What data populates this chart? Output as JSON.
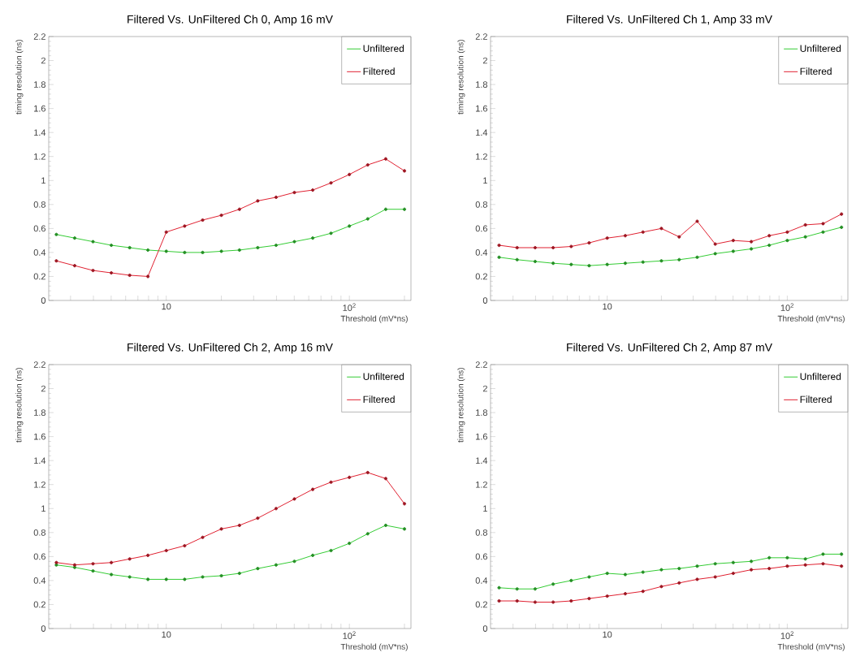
{
  "chart_data": [
    {
      "type": "line",
      "title": "Filtered Vs. UnFiltered Ch 0, Amp 16 mV",
      "xlabel": "Threshold (mV*ns)",
      "ylabel": "timing resolution (ns)",
      "log": "x",
      "legend": "top right",
      "marker": "circle",
      "line_style": "solid",
      "x": [
        2.51,
        3.16,
        3.98,
        5.01,
        6.31,
        7.94,
        10,
        12.6,
        15.8,
        20,
        25.1,
        31.6,
        39.8,
        50.1,
        63.1,
        79.4,
        100,
        126,
        158,
        200
      ],
      "series": [
        {
          "name": "Unfiltered",
          "color": "#33cc33",
          "values": [
            0.55,
            0.52,
            0.49,
            0.46,
            0.44,
            0.42,
            0.41,
            0.4,
            0.4,
            0.41,
            0.42,
            0.44,
            0.46,
            0.49,
            0.52,
            0.56,
            0.62,
            0.68,
            0.76,
            0.76
          ]
        },
        {
          "name": "Filtered",
          "color": "#e02030",
          "values": [
            0.33,
            0.29,
            0.25,
            0.23,
            0.21,
            0.2,
            0.57,
            0.62,
            0.67,
            0.71,
            0.76,
            0.83,
            0.86,
            0.9,
            0.92,
            0.98,
            1.05,
            1.13,
            1.18,
            1.08
          ]
        }
      ],
      "xlim": [
        2.28,
        217
      ],
      "ylim": [
        0,
        2.2
      ],
      "xticks": [
        {
          "value": 3,
          "label": null
        },
        {
          "value": 4,
          "label": null
        },
        {
          "value": 5,
          "label": null
        },
        {
          "value": 6,
          "label": null
        },
        {
          "value": 7,
          "label": null
        },
        {
          "value": 8,
          "label": null
        },
        {
          "value": 9,
          "label": null
        },
        {
          "value": 10,
          "label": "10"
        },
        {
          "value": 20,
          "label": null
        },
        {
          "value": 30,
          "label": null
        },
        {
          "value": 40,
          "label": null
        },
        {
          "value": 50,
          "label": null
        },
        {
          "value": 60,
          "label": null
        },
        {
          "value": 70,
          "label": null
        },
        {
          "value": 80,
          "label": null
        },
        {
          "value": 90,
          "label": null
        },
        {
          "value": 100,
          "label": "10$^{2}$"
        },
        {
          "value": 200,
          "label": null
        }
      ],
      "yticks": [
        0,
        0.2,
        0.4,
        0.6,
        0.8,
        1,
        1.2,
        1.4,
        1.6,
        1.8,
        2,
        2.2
      ]
    },
    {
      "type": "line",
      "title": "Filtered Vs. UnFiltered Ch 1, Amp 33 mV",
      "xlabel": "Threshold (mV*ns)",
      "ylabel": "timing resolution (ns)",
      "log": "x",
      "legend": "top right",
      "marker": "circle",
      "line_style": "solid",
      "x": [
        2.51,
        3.16,
        3.98,
        5.01,
        6.31,
        7.94,
        10,
        12.6,
        15.8,
        20,
        25.1,
        31.6,
        39.8,
        50.1,
        63.1,
        79.4,
        100,
        126,
        158,
        200
      ],
      "series": [
        {
          "name": "Unfiltered",
          "color": "#33cc33",
          "values": [
            0.36,
            0.34,
            0.325,
            0.31,
            0.3,
            0.29,
            0.3,
            0.31,
            0.32,
            0.33,
            0.34,
            0.36,
            0.39,
            0.41,
            0.43,
            0.46,
            0.5,
            0.53,
            0.57,
            0.61
          ]
        },
        {
          "name": "Filtered",
          "color": "#e02030",
          "values": [
            0.46,
            0.44,
            0.44,
            0.44,
            0.45,
            0.48,
            0.52,
            0.54,
            0.57,
            0.6,
            0.53,
            0.66,
            0.47,
            0.5,
            0.49,
            0.54,
            0.57,
            0.63,
            0.64,
            0.72
          ]
        }
      ],
      "xlim": [
        2.25,
        217
      ],
      "ylim": [
        0,
        2.2
      ],
      "xticks": [
        {
          "value": 3,
          "label": null
        },
        {
          "value": 4,
          "label": null
        },
        {
          "value": 5,
          "label": null
        },
        {
          "value": 6,
          "label": null
        },
        {
          "value": 7,
          "label": null
        },
        {
          "value": 8,
          "label": null
        },
        {
          "value": 9,
          "label": null
        },
        {
          "value": 10,
          "label": "10"
        },
        {
          "value": 20,
          "label": null
        },
        {
          "value": 30,
          "label": null
        },
        {
          "value": 40,
          "label": null
        },
        {
          "value": 50,
          "label": null
        },
        {
          "value": 60,
          "label": null
        },
        {
          "value": 70,
          "label": null
        },
        {
          "value": 80,
          "label": null
        },
        {
          "value": 90,
          "label": null
        },
        {
          "value": 100,
          "label": "10$^{2}$"
        },
        {
          "value": 200,
          "label": null
        }
      ],
      "yticks": [
        0,
        0.2,
        0.4,
        0.6,
        0.8,
        1,
        1.2,
        1.4,
        1.6,
        1.8,
        2,
        2.2
      ]
    },
    {
      "type": "line",
      "title": "Filtered Vs. UnFiltered Ch 2, Amp 16 mV",
      "xlabel": "Threshold (mV*ns)",
      "ylabel": "timing resolution (ns)",
      "log": "x",
      "legend": "top right",
      "marker": "circle",
      "line_style": "solid",
      "x": [
        2.51,
        3.16,
        3.98,
        5.01,
        6.31,
        7.94,
        10,
        12.6,
        15.8,
        20,
        25.1,
        31.6,
        39.8,
        50.1,
        63.1,
        79.4,
        100,
        126,
        158,
        200
      ],
      "series": [
        {
          "name": "Unfiltered",
          "color": "#33cc33",
          "values": [
            0.53,
            0.51,
            0.48,
            0.45,
            0.43,
            0.41,
            0.41,
            0.41,
            0.43,
            0.44,
            0.46,
            0.5,
            0.53,
            0.56,
            0.61,
            0.65,
            0.71,
            0.79,
            0.86,
            0.83
          ]
        },
        {
          "name": "Filtered",
          "color": "#e02030",
          "values": [
            0.55,
            0.53,
            0.54,
            0.55,
            0.58,
            0.61,
            0.65,
            0.69,
            0.76,
            0.83,
            0.86,
            0.92,
            1.0,
            1.08,
            1.16,
            1.22,
            1.26,
            1.3,
            1.25,
            1.04
          ]
        }
      ],
      "xlim": [
        2.28,
        217
      ],
      "ylim": [
        0,
        2.2
      ],
      "xticks": [
        {
          "value": 3,
          "label": null
        },
        {
          "value": 4,
          "label": null
        },
        {
          "value": 5,
          "label": null
        },
        {
          "value": 6,
          "label": null
        },
        {
          "value": 7,
          "label": null
        },
        {
          "value": 8,
          "label": null
        },
        {
          "value": 9,
          "label": null
        },
        {
          "value": 10,
          "label": "10"
        },
        {
          "value": 20,
          "label": null
        },
        {
          "value": 30,
          "label": null
        },
        {
          "value": 40,
          "label": null
        },
        {
          "value": 50,
          "label": null
        },
        {
          "value": 60,
          "label": null
        },
        {
          "value": 70,
          "label": null
        },
        {
          "value": 80,
          "label": null
        },
        {
          "value": 90,
          "label": null
        },
        {
          "value": 100,
          "label": "10$^{2}$"
        },
        {
          "value": 200,
          "label": null
        }
      ],
      "yticks": [
        0,
        0.2,
        0.4,
        0.6,
        0.8,
        1,
        1.2,
        1.4,
        1.6,
        1.8,
        2,
        2.2
      ]
    },
    {
      "type": "line",
      "title": "Filtered Vs. UnFiltered Ch 2, Amp 87 mV",
      "xlabel": "Threshold (mV*ns)",
      "ylabel": "timing resolution (ns)",
      "log": "x",
      "legend": "top right",
      "marker": "circle",
      "line_style": "solid",
      "x": [
        2.51,
        3.16,
        3.98,
        5.01,
        6.31,
        7.94,
        10,
        12.6,
        15.8,
        20,
        25.1,
        31.6,
        39.8,
        50.1,
        63.1,
        79.4,
        100,
        126,
        158,
        200
      ],
      "series": [
        {
          "name": "Unfiltered",
          "color": "#33cc33",
          "values": [
            0.34,
            0.33,
            0.33,
            0.37,
            0.4,
            0.43,
            0.46,
            0.45,
            0.47,
            0.49,
            0.5,
            0.52,
            0.54,
            0.55,
            0.56,
            0.59,
            0.59,
            0.58,
            0.62,
            0.62
          ]
        },
        {
          "name": "Filtered",
          "color": "#e02030",
          "values": [
            0.23,
            0.23,
            0.22,
            0.22,
            0.23,
            0.25,
            0.27,
            0.29,
            0.31,
            0.35,
            0.38,
            0.41,
            0.43,
            0.46,
            0.49,
            0.5,
            0.52,
            0.53,
            0.54,
            0.52
          ]
        }
      ],
      "xlim": [
        2.25,
        217
      ],
      "ylim": [
        0,
        2.2
      ],
      "xticks": [
        {
          "value": 3,
          "label": null
        },
        {
          "value": 4,
          "label": null
        },
        {
          "value": 5,
          "label": null
        },
        {
          "value": 6,
          "label": null
        },
        {
          "value": 7,
          "label": null
        },
        {
          "value": 8,
          "label": null
        },
        {
          "value": 9,
          "label": null
        },
        {
          "value": 10,
          "label": "10"
        },
        {
          "value": 20,
          "label": null
        },
        {
          "value": 30,
          "label": null
        },
        {
          "value": 40,
          "label": null
        },
        {
          "value": 50,
          "label": null
        },
        {
          "value": 60,
          "label": null
        },
        {
          "value": 70,
          "label": null
        },
        {
          "value": 80,
          "label": null
        },
        {
          "value": 90,
          "label": null
        },
        {
          "value": 100,
          "label": "10$^{2}$"
        },
        {
          "value": 200,
          "label": null
        }
      ],
      "yticks": [
        0,
        0.2,
        0.4,
        0.6,
        0.8,
        1,
        1.2,
        1.4,
        1.6,
        1.8,
        2,
        2.2
      ]
    }
  ]
}
